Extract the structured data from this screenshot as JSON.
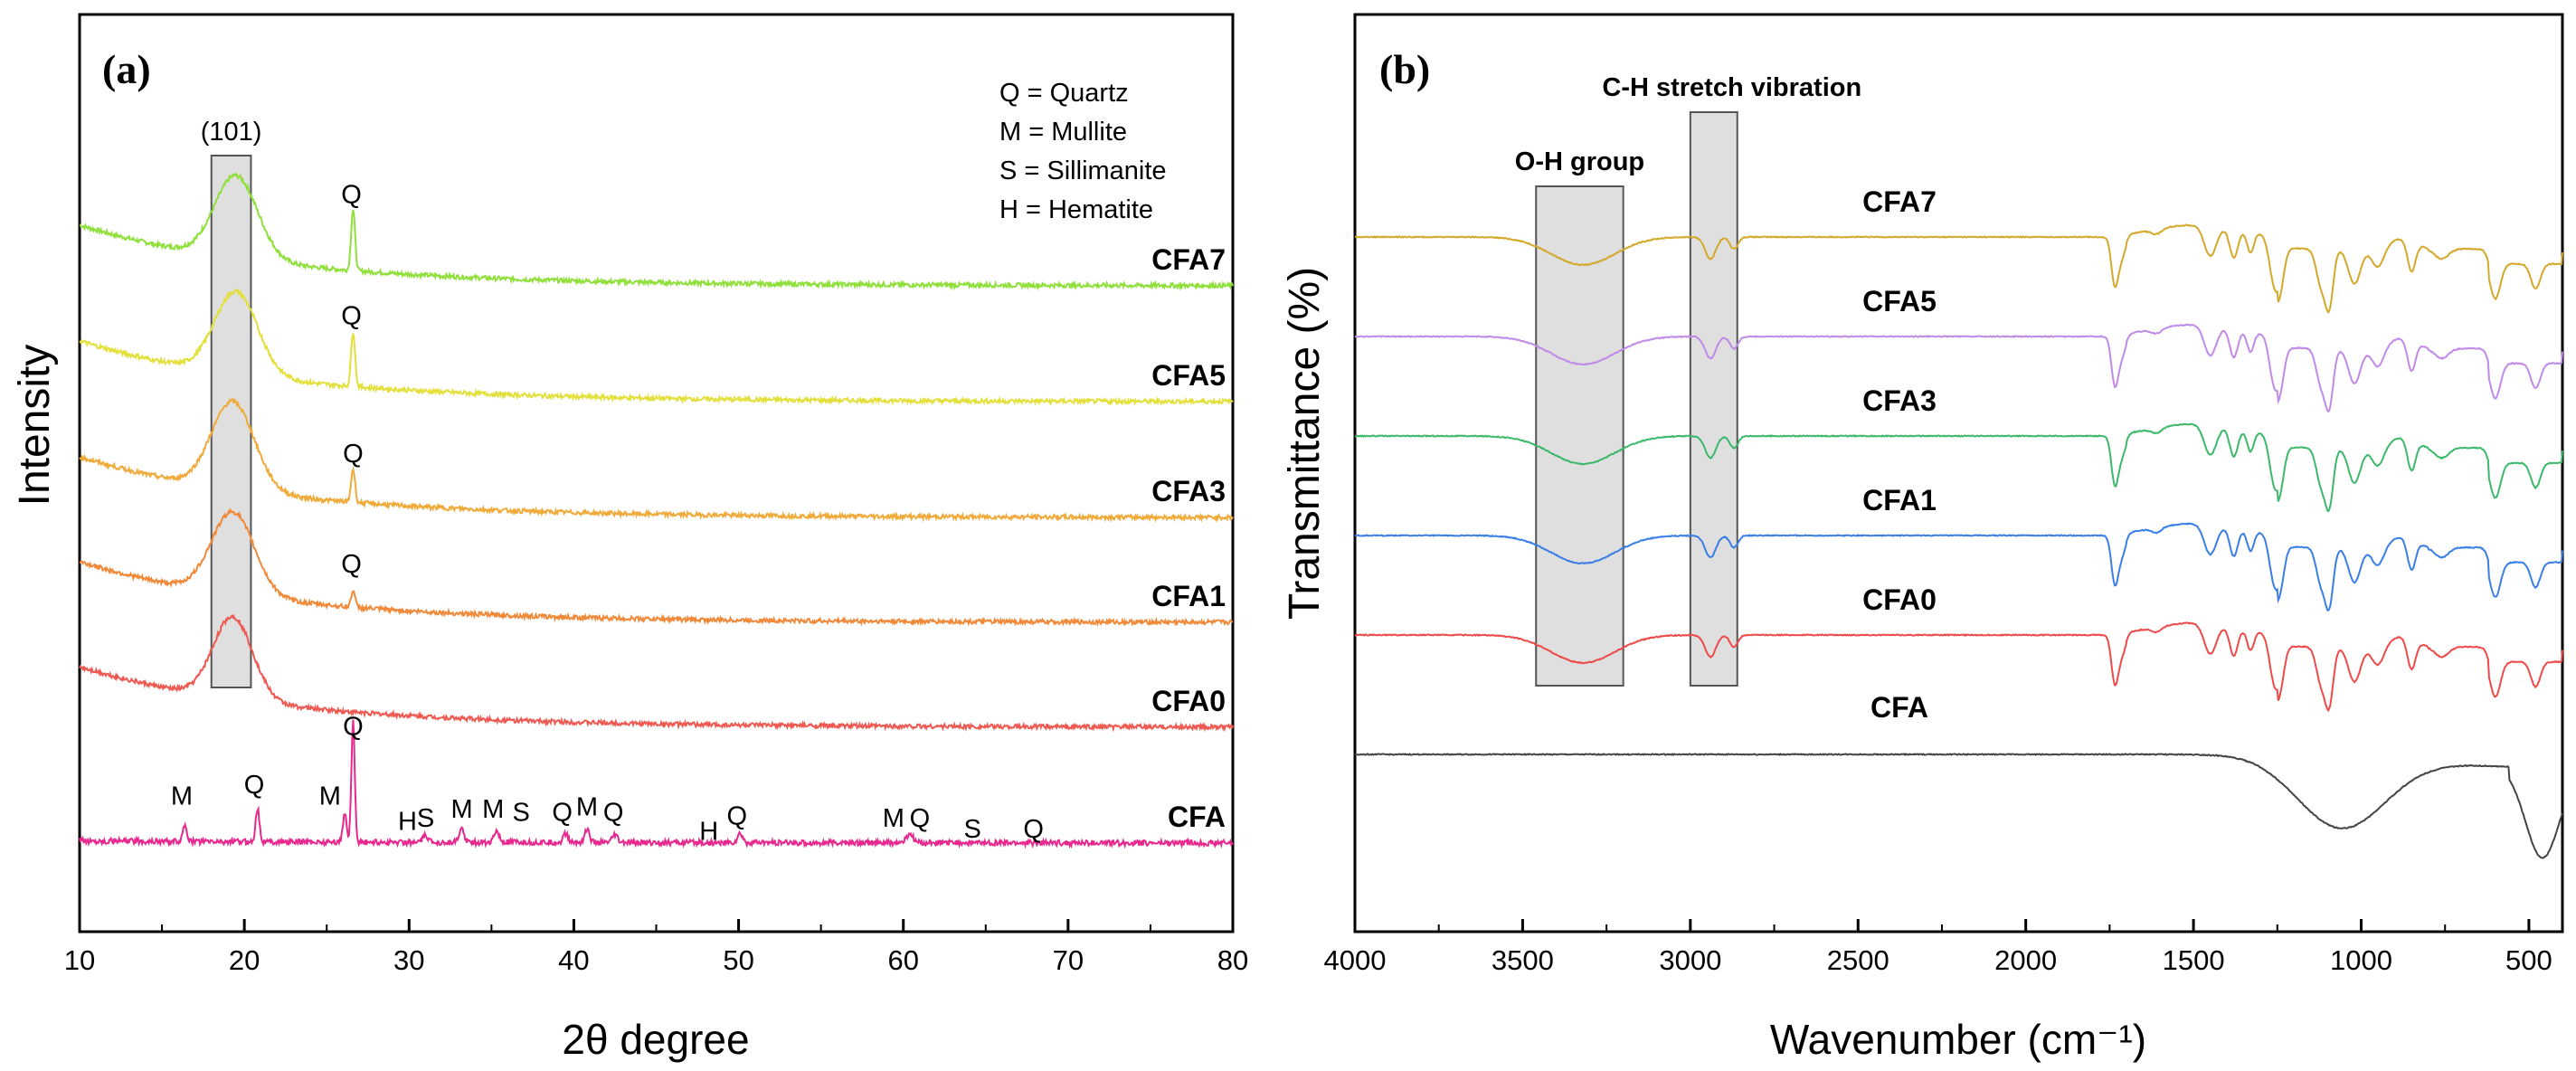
{
  "chart_data": [
    {
      "type": "line",
      "panel_label": "(a)",
      "xlabel": "2θ degree",
      "ylabel": "Intensity",
      "xlim": [
        10,
        80
      ],
      "xticks": [
        10,
        20,
        30,
        40,
        50,
        60,
        70,
        80
      ],
      "xtick_labels": [
        "10",
        "20",
        "30",
        "40",
        "50",
        "60",
        "70",
        "80"
      ],
      "legend": [
        "Q = Quartz",
        "M = Mullite",
        "S = Sillimanite",
        "H = Hematite"
      ],
      "highlight": {
        "label": "(101)",
        "x_range": [
          18,
          20.4
        ]
      },
      "series": [
        {
          "name": "CFA7",
          "color": "#8fe03a",
          "offset": 5.0,
          "peaks": [
            {
              "x": 19.5,
              "h": 0.75,
              "w": 1.3
            },
            {
              "x": 26.6,
              "h": 0.55,
              "w": 0.12
            }
          ],
          "labels": [
            {
              "text": "Q",
              "x": 26.5,
              "dy": 0.75
            }
          ]
        },
        {
          "name": "CFA5",
          "color": "#e3e03c",
          "offset": 3.95,
          "peaks": [
            {
              "x": 19.5,
              "h": 0.75,
              "w": 1.3
            },
            {
              "x": 26.6,
              "h": 0.5,
              "w": 0.12
            }
          ],
          "labels": [
            {
              "text": "Q",
              "x": 26.5,
              "dy": 0.7
            }
          ]
        },
        {
          "name": "CFA3",
          "color": "#f0aa3a",
          "offset": 2.9,
          "peaks": [
            {
              "x": 19.3,
              "h": 0.8,
              "w": 1.3
            },
            {
              "x": 26.6,
              "h": 0.3,
              "w": 0.12
            }
          ],
          "labels": [
            {
              "text": "Q",
              "x": 26.6,
              "dy": 0.5
            }
          ]
        },
        {
          "name": "CFA1",
          "color": "#f08a3a",
          "offset": 1.95,
          "peaks": [
            {
              "x": 19.3,
              "h": 0.75,
              "w": 1.3
            },
            {
              "x": 26.6,
              "h": 0.15,
              "w": 0.12
            }
          ],
          "labels": [
            {
              "text": "Q",
              "x": 26.5,
              "dy": 0.45
            }
          ]
        },
        {
          "name": "CFA0",
          "color": "#ee5a52",
          "offset": 1.0,
          "peaks": [
            {
              "x": 19.3,
              "h": 0.75,
              "w": 1.2
            }
          ],
          "labels": []
        },
        {
          "name": "CFA",
          "color": "#e8288e",
          "offset": 0.0,
          "peaks": [
            {
              "x": 16.4,
              "h": 0.15,
              "w": 0.12
            },
            {
              "x": 20.8,
              "h": 0.3,
              "w": 0.12
            },
            {
              "x": 26.1,
              "h": 0.25,
              "w": 0.12
            },
            {
              "x": 26.6,
              "h": 1.1,
              "w": 0.1
            },
            {
              "x": 31.0,
              "h": 0.06,
              "w": 0.15
            },
            {
              "x": 33.2,
              "h": 0.12,
              "w": 0.15
            },
            {
              "x": 35.3,
              "h": 0.1,
              "w": 0.15
            },
            {
              "x": 39.5,
              "h": 0.08,
              "w": 0.15
            },
            {
              "x": 40.8,
              "h": 0.12,
              "w": 0.15
            },
            {
              "x": 42.5,
              "h": 0.07,
              "w": 0.15
            },
            {
              "x": 50.1,
              "h": 0.08,
              "w": 0.15
            },
            {
              "x": 60.4,
              "h": 0.08,
              "w": 0.2
            }
          ],
          "labels": [
            {
              "text": "M",
              "x": 16.2,
              "dy": 0.3
            },
            {
              "text": "Q",
              "x": 20.6,
              "dy": 0.4
            },
            {
              "text": "M",
              "x": 25.2,
              "dy": 0.3
            },
            {
              "text": "Q",
              "x": 26.6,
              "dy": 0.93
            },
            {
              "text": "H",
              "x": 29.9,
              "dy": 0.07
            },
            {
              "text": "S",
              "x": 31.0,
              "dy": 0.1
            },
            {
              "text": "M",
              "x": 33.2,
              "dy": 0.18
            },
            {
              "text": "M",
              "x": 35.1,
              "dy": 0.18
            },
            {
              "text": "S",
              "x": 36.8,
              "dy": 0.15
            },
            {
              "text": "Q",
              "x": 39.3,
              "dy": 0.15
            },
            {
              "text": "M",
              "x": 40.8,
              "dy": 0.2
            },
            {
              "text": "Q",
              "x": 42.4,
              "dy": 0.15
            },
            {
              "text": "H",
              "x": 48.2,
              "dy": -0.02
            },
            {
              "text": "Q",
              "x": 49.9,
              "dy": 0.12
            },
            {
              "text": "M",
              "x": 59.4,
              "dy": 0.1
            },
            {
              "text": "Q",
              "x": 61.0,
              "dy": 0.1
            },
            {
              "text": "S",
              "x": 64.2,
              "dy": 0.0
            },
            {
              "text": "Q",
              "x": 67.9,
              "dy": 0.0
            }
          ]
        }
      ]
    },
    {
      "type": "line",
      "panel_label": "(b)",
      "xlabel": "Wavenumber (cm⁻¹)",
      "ylabel": "Transmittance (%)",
      "xlim": [
        4000,
        400
      ],
      "x_reversed": true,
      "xticks": [
        4000,
        3500,
        3000,
        2500,
        2000,
        1500,
        1000,
        500
      ],
      "xtick_labels": [
        "4000",
        "3500",
        "3000",
        "2500",
        "2000",
        "1500",
        "1000",
        "500"
      ],
      "highlights": [
        {
          "label": "O-H group",
          "x_range": [
            3460,
            3200
          ]
        },
        {
          "label": "C-H stretch vibration",
          "x_range": [
            3000,
            2860
          ]
        }
      ],
      "series": [
        {
          "name": "CFA7",
          "color": "#d4a82a",
          "offset": 5.0
        },
        {
          "name": "CFA5",
          "color": "#c08ae8",
          "offset": 4.0
        },
        {
          "name": "CFA3",
          "color": "#3cb86a",
          "offset": 3.0
        },
        {
          "name": "CFA1",
          "color": "#3a7ee6",
          "offset": 2.0
        },
        {
          "name": "CFA0",
          "color": "#ee4a4a",
          "offset": 1.0
        },
        {
          "name": "CFA",
          "color": "#444444",
          "offset": -0.2
        }
      ]
    }
  ]
}
